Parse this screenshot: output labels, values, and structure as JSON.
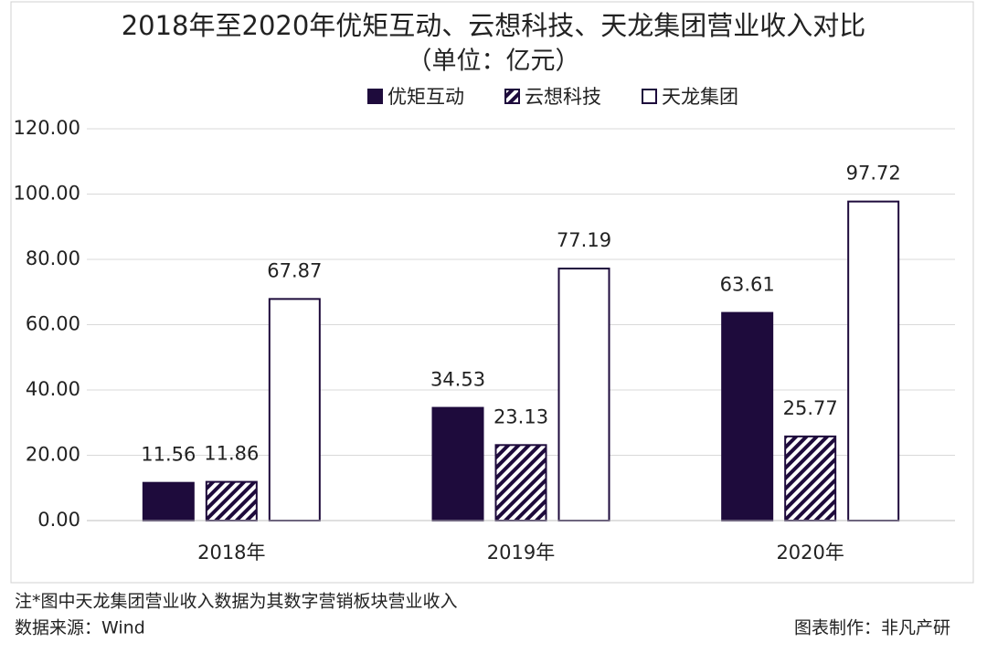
{
  "chart_data": {
    "type": "bar",
    "title": "2018年至2020年优矩互动、云想科技、天龙集团营业收入对比",
    "subtitle": "（单位：亿元）",
    "categories": [
      "2018年",
      "2019年",
      "2020年"
    ],
    "series": [
      {
        "name": "优矩互动",
        "color": "#1e0b3c",
        "values": [
          11.56,
          34.53,
          63.61
        ]
      },
      {
        "name": "云想科技",
        "color": "#1e0b3c",
        "pattern": "hatch",
        "values": [
          11.86,
          23.13,
          25.77
        ]
      },
      {
        "name": "天龙集团",
        "color": "#ffffff",
        "values": [
          67.87,
          77.19,
          97.72
        ]
      }
    ],
    "ylim": [
      0,
      120
    ],
    "yticks": [
      {
        "value": 0,
        "label": "0.00"
      },
      {
        "value": 20,
        "label": "20.00"
      },
      {
        "value": 40,
        "label": "40.00"
      },
      {
        "value": 60,
        "label": "60.00"
      },
      {
        "value": 80,
        "label": "80.00"
      },
      {
        "value": 100,
        "label": "100.00"
      },
      {
        "value": 120,
        "label": "120.00"
      }
    ],
    "grid": true,
    "legend": "top",
    "note": "注*图中天龙集团营业收入数据为其数字营销板块营业收入",
    "source": "数据来源：Wind",
    "credit": "图表制作：非凡产研"
  }
}
